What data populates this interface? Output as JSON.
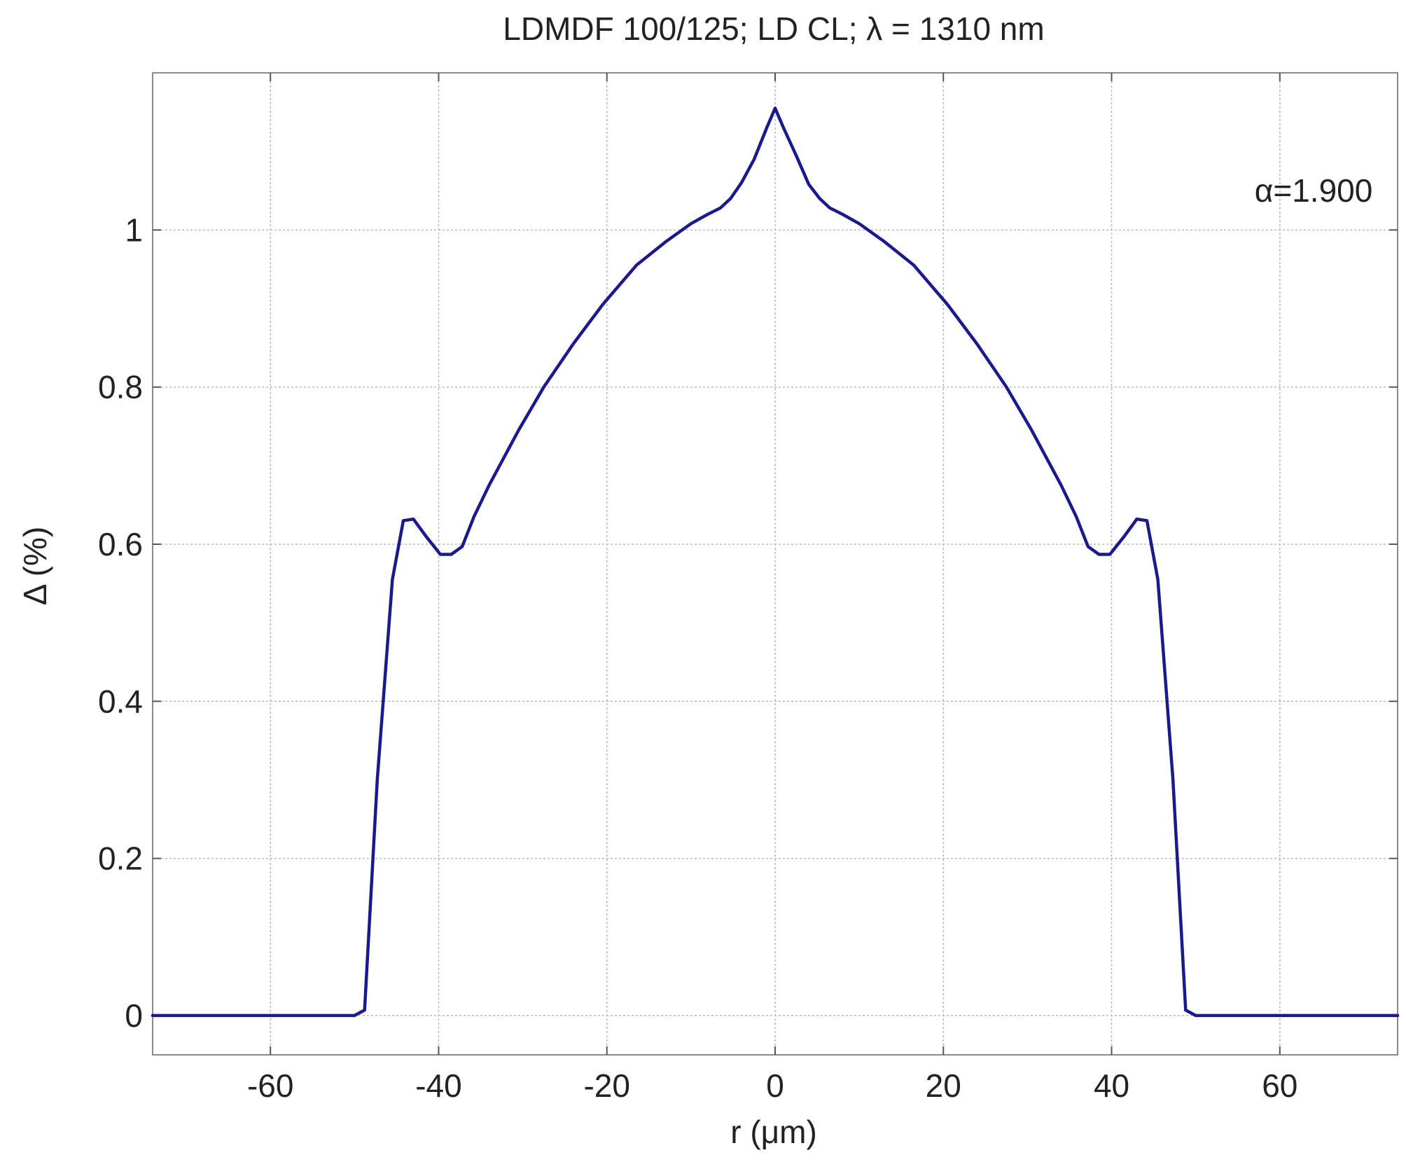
{
  "chart_data": {
    "type": "line",
    "title": "LDMDF 100/125; LD CL; λ = 1310 nm",
    "xlabel": "r (μm)",
    "ylabel": "Δ (%)",
    "xlim": [
      -74,
      74
    ],
    "ylim": [
      -0.05,
      1.2
    ],
    "xticks": [
      -60,
      -40,
      -20,
      0,
      20,
      40,
      60
    ],
    "yticks": [
      0,
      0.2,
      0.4,
      0.6,
      0.8,
      1
    ],
    "xtick_labels": [
      "-60",
      "-40",
      "-20",
      "0",
      "20",
      "40",
      "60"
    ],
    "ytick_labels": [
      "0",
      "0.2",
      "0.4",
      "0.6",
      "0.8",
      "1"
    ],
    "grid": true,
    "annotations": [
      {
        "text": "α=1.900",
        "x": 57,
        "y": 1.05
      }
    ],
    "series": [
      {
        "color": "#1a1a8c",
        "x": [
          -74,
          -50,
          -48.8,
          -47.3,
          -45.5,
          -44.2,
          -43.0,
          -41.5,
          -39.8,
          -38.5,
          -37.2,
          -35.8,
          -34.0,
          -30.5,
          -27.5,
          -24.0,
          -20.5,
          -16.5,
          -13.0,
          -10.0,
          -8.0,
          -6.5,
          -5.3,
          -4.0,
          -2.5,
          -1.0,
          0,
          1.0,
          2.5,
          4.0,
          5.3,
          6.5,
          8.0,
          10.0,
          13.0,
          16.5,
          20.5,
          24.0,
          27.5,
          30.5,
          34.0,
          35.8,
          37.2,
          38.5,
          39.8,
          41.5,
          43.0,
          44.2,
          45.5,
          47.3,
          48.8,
          50,
          74
        ],
        "values": [
          0,
          0,
          0.007,
          0.3,
          0.555,
          0.63,
          0.632,
          0.61,
          0.587,
          0.587,
          0.597,
          0.635,
          0.675,
          0.745,
          0.8,
          0.855,
          0.905,
          0.955,
          0.985,
          1.008,
          1.02,
          1.028,
          1.04,
          1.06,
          1.09,
          1.13,
          1.155,
          1.13,
          1.095,
          1.058,
          1.04,
          1.028,
          1.02,
          1.008,
          0.985,
          0.955,
          0.905,
          0.855,
          0.8,
          0.745,
          0.675,
          0.635,
          0.597,
          0.587,
          0.587,
          0.61,
          0.632,
          0.63,
          0.555,
          0.3,
          0.007,
          0,
          0
        ]
      }
    ]
  }
}
